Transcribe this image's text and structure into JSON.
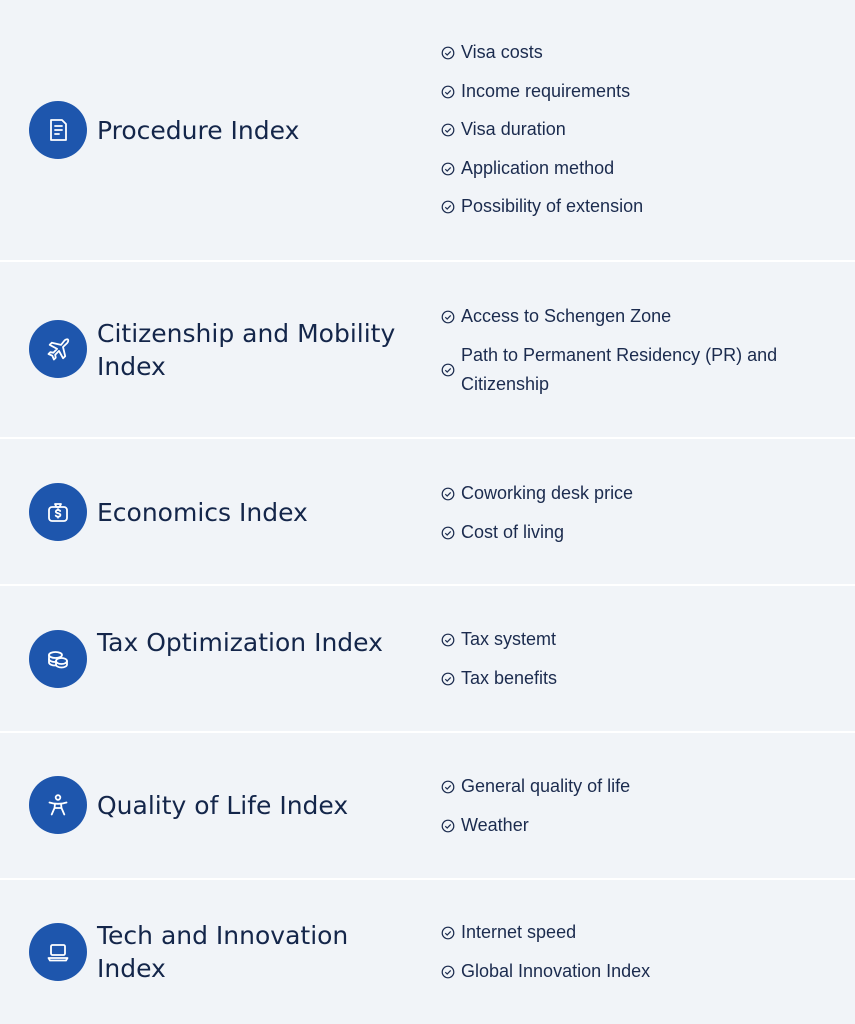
{
  "colors": {
    "background": "#f1f4f8",
    "icon_circle": "#1e56ad",
    "divider": "#ffffff",
    "text": "#1b2b4e"
  },
  "sections": [
    {
      "icon": "document-icon",
      "title": "Procedure Index",
      "items": [
        "Visa costs",
        "Income requirements",
        "Visa duration",
        "Application method",
        "Possibility of extension"
      ]
    },
    {
      "icon": "airplane-icon",
      "title": "Citizenship and Mobility Index",
      "items": [
        "Access to Schengen Zone",
        "Path to Permanent Residency (PR) and Citizenship"
      ]
    },
    {
      "icon": "money-bag-icon",
      "title": "Economics Index",
      "items": [
        "Coworking desk price",
        "Cost of living"
      ]
    },
    {
      "icon": "coins-icon",
      "title": "Tax Optimization Index",
      "items": [
        "Tax systemt",
        "Tax benefits"
      ]
    },
    {
      "icon": "person-icon",
      "title": "Quality of Life Index",
      "items": [
        "General quality of life",
        "Weather"
      ]
    },
    {
      "icon": "laptop-icon",
      "title": "Tech and Innovation Index",
      "items": [
        "Internet speed",
        "Global Innovation Index"
      ]
    }
  ]
}
